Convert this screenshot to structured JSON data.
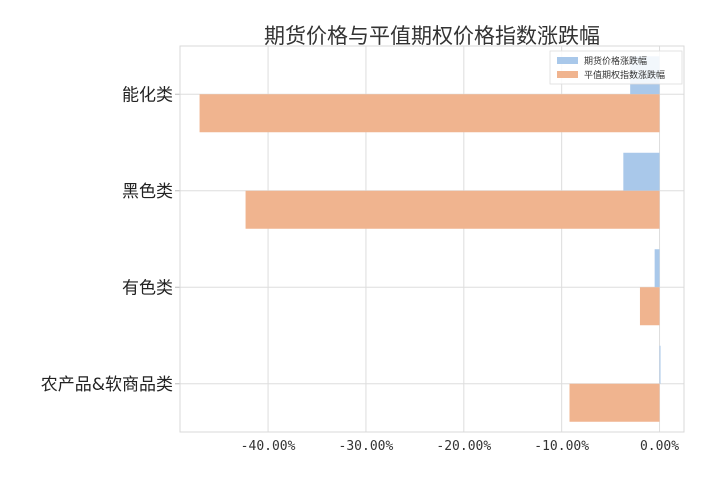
{
  "chart_data": {
    "type": "bar",
    "orientation": "horizontal",
    "title": "期货价格与平值期权价格指数涨跌幅",
    "categories": [
      "能化类",
      "黑色类",
      "有色类",
      "农产品&软商品类"
    ],
    "series": [
      {
        "name": "期货价格涨跌幅",
        "values": [
          -3.0,
          -3.7,
          -0.5,
          0.1
        ],
        "color": "#a9c8ea"
      },
      {
        "name": "平值期权指数涨跌幅",
        "values": [
          -47.0,
          -42.3,
          -2.0,
          -9.2
        ],
        "color": "#f0b48f"
      }
    ],
    "xlim": [
      -49.0,
      2.5
    ],
    "xticks": [
      -40,
      -30,
      -20,
      -10,
      0
    ],
    "xtick_labels": [
      "-40.00%",
      "-30.00%",
      "-20.00%",
      "-10.00%",
      "0.00%"
    ],
    "unit": "%",
    "grid": true,
    "legend_position": "top-right"
  }
}
